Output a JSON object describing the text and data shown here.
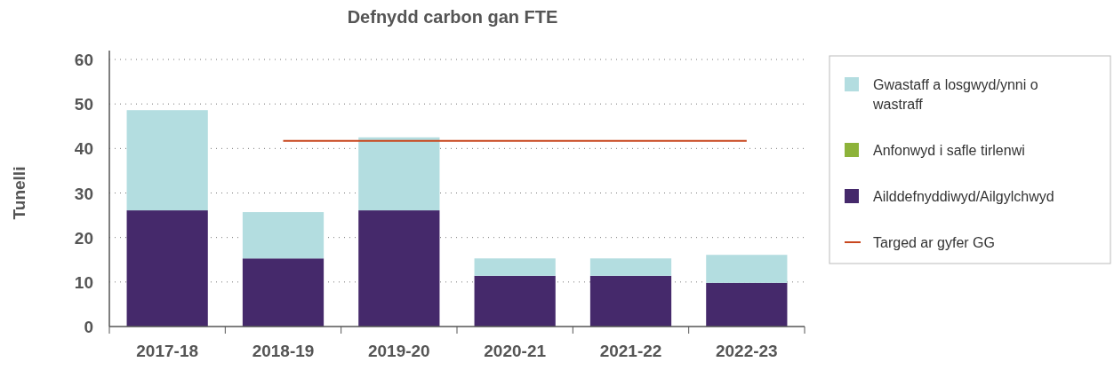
{
  "chart_data": {
    "type": "bar",
    "title": "Defnydd carbon gan FTE",
    "ylabel": "Tunelli",
    "stacked": true,
    "categories": [
      "2017-18",
      "2018-19",
      "2019-20",
      "2020-21",
      "2021-22",
      "2022-23"
    ],
    "series": [
      {
        "name": "Ailddefnyddiwyd/Ailgylchwyd",
        "color": "#45296b",
        "values": [
          26.1,
          15.3,
          26.1,
          11.4,
          11.4,
          9.8
        ]
      },
      {
        "name": "Anfonwyd i safle tirlenwi",
        "color": "#8db33a",
        "values": [
          0,
          0,
          0,
          0,
          0,
          0
        ]
      },
      {
        "name": "Gwastaff a losgwyd/ynni o wastraff",
        "color": "#b3dde0",
        "values": [
          22.5,
          10.4,
          16.4,
          3.9,
          3.9,
          6.3
        ]
      },
      {
        "name": "Targed ar gyfer GG",
        "type": "line",
        "color": "#c8471e",
        "values": [
          null,
          41.7,
          41.7,
          41.7,
          41.7,
          41.7
        ]
      }
    ],
    "ylim": [
      0,
      60
    ],
    "yticks": [
      0,
      10,
      20,
      30,
      40,
      50,
      60
    ],
    "grid": "y",
    "legend": "right"
  }
}
